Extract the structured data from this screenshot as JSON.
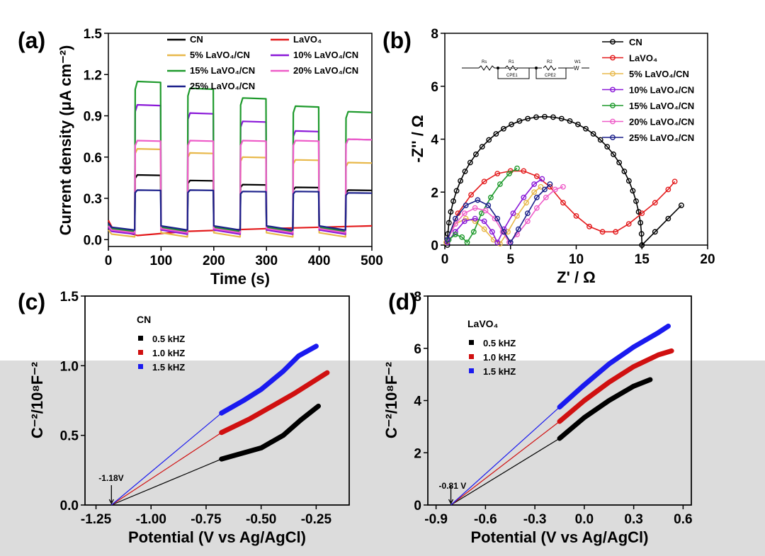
{
  "colors": {
    "black": "#000000",
    "red": "#e31a1c",
    "yellow": "#e8b84a",
    "purple": "#8a18d8",
    "green": "#1e9a2c",
    "pink": "#ee5cc8",
    "navy": "#1a1f8a",
    "blue": "#1a1aef",
    "darkred": "#d01010",
    "overlay": "#dcdcdc"
  },
  "chart_data": [
    {
      "panel": "(a)",
      "type": "line",
      "xlabel": "Time (s)",
      "ylabel": "Current density (μA cm⁻²)",
      "xlim": [
        0,
        500
      ],
      "ylim": [
        -0.05,
        1.5
      ],
      "xticks": [
        "0",
        "100",
        "200",
        "300",
        "400",
        "500"
      ],
      "yticks": [
        "0.0",
        "0.3",
        "0.6",
        "0.9",
        "1.2",
        "1.5"
      ],
      "legend_position": "top",
      "on_windows": [
        [
          50,
          100
        ],
        [
          150,
          200
        ],
        [
          250,
          300
        ],
        [
          350,
          400
        ],
        [
          450,
          500
        ]
      ],
      "series": [
        {
          "name": "CN",
          "color_key": "black",
          "dark": 0.06,
          "on_levels": [
            0.47,
            0.43,
            0.4,
            0.38,
            0.36
          ]
        },
        {
          "name": "LaVO₄",
          "color_key": "red",
          "dark_trend": [
            [
              55,
              0.03
            ],
            [
              150,
              0.06
            ],
            [
              300,
              0.08
            ],
            [
              500,
              0.1
            ]
          ]
        },
        {
          "name": "5%  LaVO₄/CN",
          "color_key": "yellow",
          "dark": 0.02,
          "on_levels": [
            0.66,
            0.63,
            0.6,
            0.58,
            0.56
          ]
        },
        {
          "name": "10% LaVO₄/CN",
          "color_key": "purple",
          "dark": 0.04,
          "on_levels": [
            0.98,
            0.92,
            0.86,
            0.79,
            0.73
          ]
        },
        {
          "name": "15% LaVO₄/CN",
          "color_key": "green",
          "dark": 0.06,
          "on_levels": [
            1.15,
            1.1,
            1.03,
            0.97,
            0.93
          ]
        },
        {
          "name": "20% LaVO₄/CN",
          "color_key": "pink",
          "dark": 0.05,
          "on_levels": [
            0.72,
            0.72,
            0.72,
            0.72,
            0.73
          ]
        },
        {
          "name": "25% LaVO₄/CN",
          "color_key": "navy",
          "dark": 0.07,
          "on_levels": [
            0.36,
            0.36,
            0.35,
            0.35,
            0.34
          ]
        }
      ]
    },
    {
      "panel": "(b)",
      "type": "scatter",
      "xlabel": "Z' / Ω",
      "ylabel": "-Z'' / Ω",
      "xlim": [
        0,
        20
      ],
      "ylim": [
        0,
        8
      ],
      "xticks": [
        "0",
        "5",
        "10",
        "15",
        "20"
      ],
      "yticks": [
        "0",
        "2",
        "4",
        "6",
        "8"
      ],
      "legend_position": "top-right",
      "circuit_labels": [
        "Rs",
        "R1",
        "CPE1",
        "R2",
        "CPE2",
        "W1"
      ],
      "series": [
        {
          "name": "CN",
          "color_key": "black",
          "arc": {
            "x0": 0.2,
            "x1": 15.0,
            "top": 4.85
          },
          "tail": [
            [
              15.0,
              0.0
            ],
            [
              16.0,
              0.5
            ],
            [
              17.0,
              1.0
            ],
            [
              18.0,
              1.5
            ]
          ]
        },
        {
          "name": "LaVO₄",
          "color_key": "red",
          "points": [
            [
              0.2,
              0.2
            ],
            [
              1.0,
              1.2
            ],
            [
              2.0,
              1.9
            ],
            [
              3.0,
              2.4
            ],
            [
              4.0,
              2.7
            ],
            [
              5.0,
              2.8
            ],
            [
              6.0,
              2.8
            ],
            [
              7.0,
              2.6
            ],
            [
              8.0,
              2.2
            ],
            [
              9.0,
              1.6
            ],
            [
              10.0,
              1.1
            ],
            [
              11.0,
              0.7
            ],
            [
              12.0,
              0.5
            ],
            [
              13.0,
              0.5
            ],
            [
              14.0,
              0.8
            ],
            [
              15.0,
              1.2
            ],
            [
              16.0,
              1.6
            ],
            [
              17.0,
              2.1
            ],
            [
              17.5,
              2.4
            ]
          ]
        },
        {
          "name": "5%  LaVO₄/CN",
          "color_key": "yellow",
          "points": [
            [
              0.1,
              0.1
            ],
            [
              0.8,
              0.8
            ],
            [
              1.6,
              1.0
            ],
            [
              2.3,
              0.9
            ],
            [
              3.0,
              0.6
            ],
            [
              3.7,
              0.2
            ],
            [
              4.2,
              0.05
            ],
            [
              4.8,
              0.5
            ],
            [
              5.5,
              1.1
            ],
            [
              6.2,
              1.6
            ],
            [
              6.8,
              2.0
            ],
            [
              7.3,
              2.2
            ]
          ]
        },
        {
          "name": "10% LaVO₄/CN",
          "color_key": "purple",
          "points": [
            [
              0.2,
              0.1
            ],
            [
              0.8,
              0.5
            ],
            [
              1.5,
              0.9
            ],
            [
              2.3,
              1.0
            ],
            [
              3.0,
              0.9
            ],
            [
              3.6,
              0.5
            ],
            [
              4.0,
              0.1
            ],
            [
              4.5,
              0.6
            ],
            [
              5.2,
              1.2
            ],
            [
              6.0,
              1.8
            ],
            [
              6.8,
              2.3
            ],
            [
              7.4,
              2.5
            ]
          ]
        },
        {
          "name": "15% LaVO₄/CN",
          "color_key": "green",
          "points": [
            [
              0.3,
              0.2
            ],
            [
              0.8,
              0.4
            ],
            [
              1.3,
              0.3
            ],
            [
              1.7,
              0.1
            ],
            [
              2.2,
              0.5
            ],
            [
              2.8,
              1.2
            ],
            [
              3.5,
              1.8
            ],
            [
              4.2,
              2.3
            ],
            [
              4.9,
              2.7
            ],
            [
              5.5,
              2.9
            ]
          ]
        },
        {
          "name": "20% LaVO₄/CN",
          "color_key": "pink",
          "points": [
            [
              0.2,
              0.2
            ],
            [
              0.8,
              0.8
            ],
            [
              1.5,
              1.2
            ],
            [
              2.3,
              1.4
            ],
            [
              3.1,
              1.3
            ],
            [
              3.8,
              1.0
            ],
            [
              4.4,
              0.5
            ],
            [
              4.9,
              0.1
            ],
            [
              5.5,
              0.4
            ],
            [
              6.3,
              0.9
            ],
            [
              7.0,
              1.4
            ],
            [
              7.7,
              1.8
            ],
            [
              8.4,
              2.1
            ],
            [
              9.0,
              2.2
            ]
          ]
        },
        {
          "name": "25% LaVO₄/CN",
          "color_key": "navy",
          "points": [
            [
              0.2,
              0.2
            ],
            [
              0.8,
              1.0
            ],
            [
              1.6,
              1.5
            ],
            [
              2.5,
              1.7
            ],
            [
              3.3,
              1.5
            ],
            [
              4.0,
              1.0
            ],
            [
              4.5,
              0.5
            ],
            [
              5.0,
              0.1
            ],
            [
              5.6,
              0.6
            ],
            [
              6.3,
              1.2
            ],
            [
              7.0,
              1.8
            ],
            [
              7.6,
              2.1
            ],
            [
              8.0,
              2.3
            ]
          ]
        }
      ]
    },
    {
      "panel": "(c)",
      "type": "line",
      "xlabel": "Potential (V vs Ag/AgCl)",
      "ylabel": "C⁻²/10⁸F⁻²",
      "xlim": [
        -1.3,
        -0.1
      ],
      "ylim": [
        0,
        1.5
      ],
      "xticks": [
        "-1.25",
        "-1.00",
        "-0.75",
        "-0.50",
        "-0.25"
      ],
      "yticks": [
        "0.0",
        "0.5",
        "1.0",
        "1.5"
      ],
      "group_label": "CN",
      "annotation": "-1.18V",
      "x_intercept": -1.18,
      "series": [
        {
          "name": "0.5 kHZ",
          "color_key": "black",
          "points": [
            [
              -0.68,
              0.33
            ],
            [
              -0.5,
              0.41
            ],
            [
              -0.4,
              0.5
            ],
            [
              -0.32,
              0.61
            ],
            [
              -0.24,
              0.71
            ]
          ]
        },
        {
          "name": "1.0 kHZ",
          "color_key": "darkred",
          "points": [
            [
              -0.68,
              0.52
            ],
            [
              -0.55,
              0.62
            ],
            [
              -0.45,
              0.71
            ],
            [
              -0.35,
              0.8
            ],
            [
              -0.27,
              0.88
            ],
            [
              -0.2,
              0.95
            ]
          ]
        },
        {
          "name": "1.5 kHZ",
          "color_key": "blue",
          "points": [
            [
              -0.68,
              0.66
            ],
            [
              -0.58,
              0.75
            ],
            [
              -0.5,
              0.83
            ],
            [
              -0.4,
              0.96
            ],
            [
              -0.33,
              1.07
            ],
            [
              -0.25,
              1.14
            ]
          ]
        }
      ]
    },
    {
      "panel": "(d)",
      "type": "line",
      "xlabel": "Potential (V vs Ag/AgCl)",
      "ylabel": "C⁻²/10⁸F⁻²",
      "xlim": [
        -0.95,
        0.65
      ],
      "ylim": [
        0,
        8
      ],
      "xticks": [
        "-0.9",
        "-0.6",
        "-0.3",
        "0.0",
        "0.3",
        "0.6"
      ],
      "yticks": [
        "0",
        "2",
        "4",
        "6",
        "8"
      ],
      "group_label": "LaVO₄",
      "annotation": "-0.81 V",
      "x_intercept": -0.81,
      "series": [
        {
          "name": "0.5 kHZ",
          "color_key": "black",
          "points": [
            [
              -0.15,
              2.55
            ],
            [
              0.0,
              3.35
            ],
            [
              0.15,
              4.0
            ],
            [
              0.3,
              4.55
            ],
            [
              0.4,
              4.8
            ]
          ]
        },
        {
          "name": "1.0 kHZ",
          "color_key": "darkred",
          "points": [
            [
              -0.15,
              3.2
            ],
            [
              0.0,
              4.0
            ],
            [
              0.15,
              4.7
            ],
            [
              0.3,
              5.3
            ],
            [
              0.45,
              5.75
            ],
            [
              0.53,
              5.9
            ]
          ]
        },
        {
          "name": "1.5 kHZ",
          "color_key": "blue",
          "points": [
            [
              -0.15,
              3.75
            ],
            [
              0.0,
              4.6
            ],
            [
              0.15,
              5.4
            ],
            [
              0.3,
              6.05
            ],
            [
              0.45,
              6.6
            ],
            [
              0.51,
              6.85
            ]
          ]
        }
      ]
    }
  ]
}
